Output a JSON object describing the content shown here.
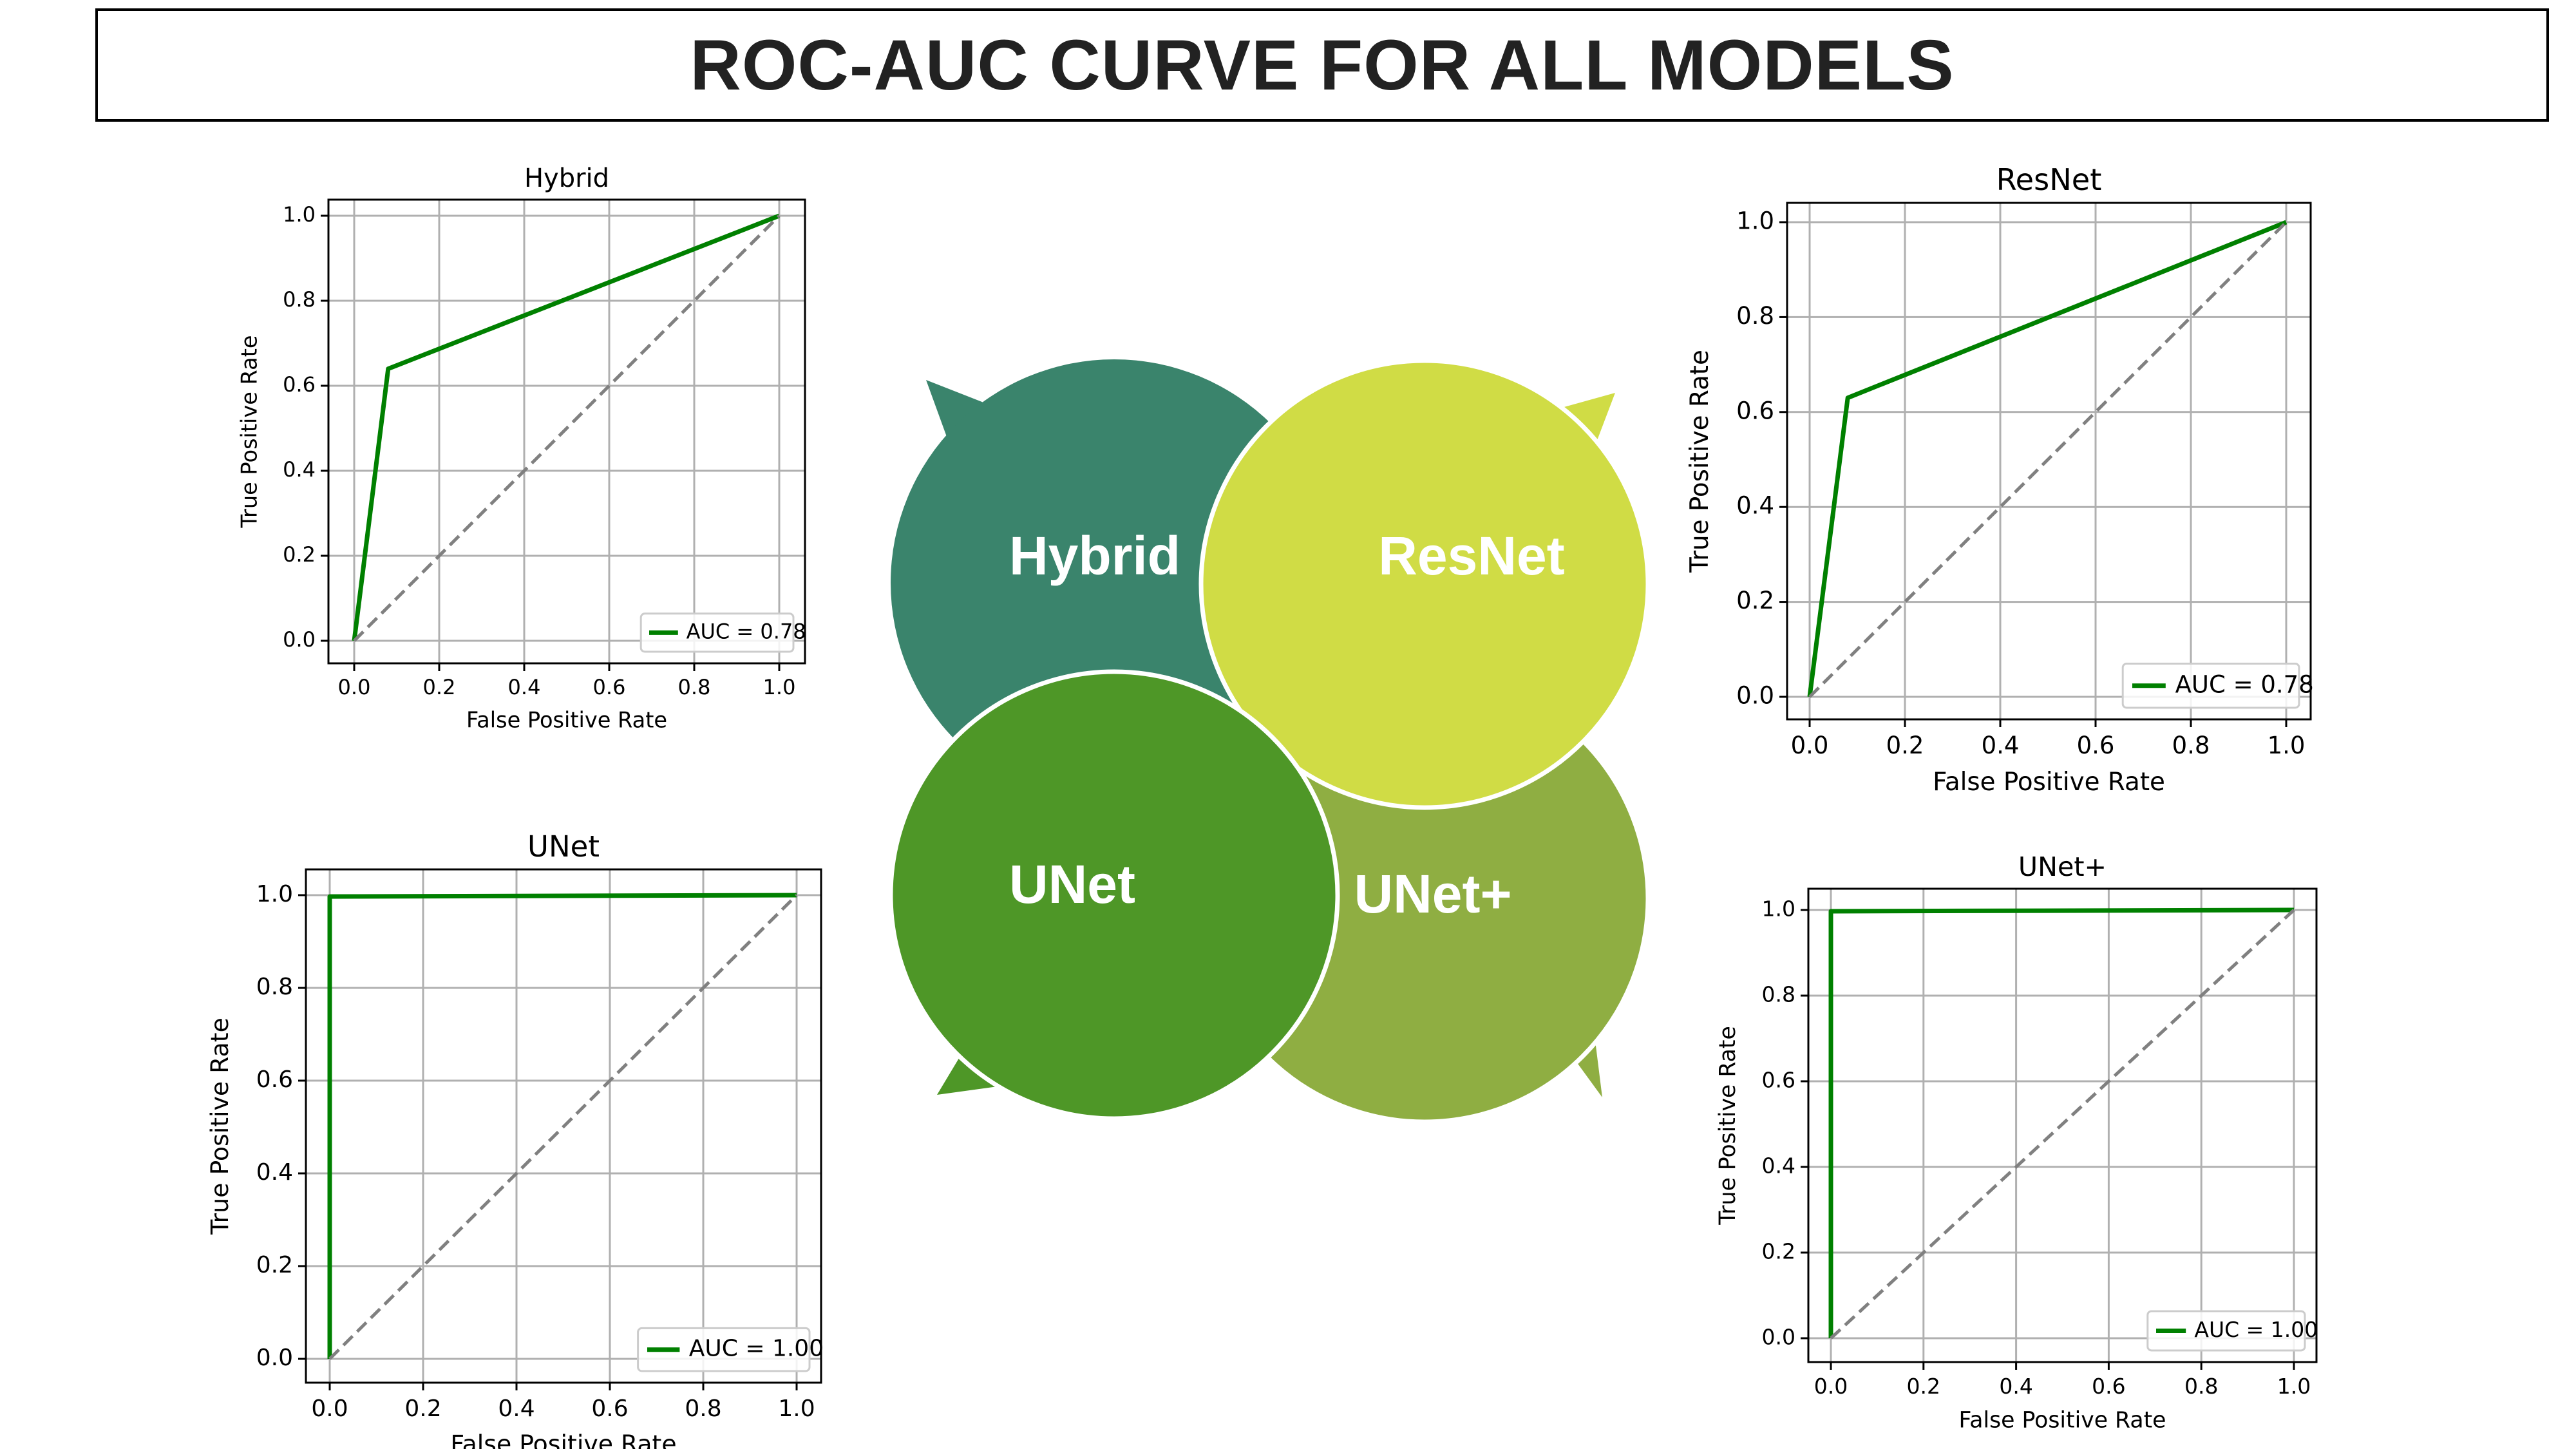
{
  "header": {
    "title": "ROC-AUC CURVE FOR ALL MODELS"
  },
  "center_graphic": {
    "labels": [
      "Hybrid",
      "ResNet",
      "UNet",
      "UNet+"
    ],
    "colors": [
      "#3a846c",
      "#d0dc45",
      "#4e9727",
      "#8fae42"
    ]
  },
  "chart_data": [
    {
      "type": "line",
      "title": "Hybrid",
      "xlabel": "False Positive Rate",
      "ylabel": "True Positive Rate",
      "xlim": [
        0,
        1
      ],
      "ylim": [
        0,
        1
      ],
      "grid": true,
      "legend_position": "lower right",
      "ticks": [
        "0.0",
        "0.2",
        "0.4",
        "0.6",
        "0.8",
        "1.0"
      ],
      "series": [
        {
          "name": "AUC = 0.78",
          "x": [
            0,
            0.08,
            1
          ],
          "y": [
            0,
            0.64,
            1
          ],
          "color": "#008000",
          "style": "solid"
        },
        {
          "x": [
            0,
            1
          ],
          "y": [
            0,
            1
          ],
          "color": "#808080",
          "style": "dashed"
        }
      ]
    },
    {
      "type": "line",
      "title": "ResNet",
      "xlabel": "False Positive Rate",
      "ylabel": "True Positive Rate",
      "xlim": [
        0,
        1
      ],
      "ylim": [
        0,
        1
      ],
      "grid": true,
      "legend_position": "lower right",
      "ticks": [
        "0.0",
        "0.2",
        "0.4",
        "0.6",
        "0.8",
        "1.0"
      ],
      "series": [
        {
          "name": "AUC = 0.78",
          "x": [
            0,
            0.08,
            1
          ],
          "y": [
            0,
            0.63,
            1
          ],
          "color": "#008000",
          "style": "solid"
        },
        {
          "x": [
            0,
            1
          ],
          "y": [
            0,
            1
          ],
          "color": "#808080",
          "style": "dashed"
        }
      ]
    },
    {
      "type": "line",
      "title": "UNet",
      "xlabel": "False Positive Rate",
      "ylabel": "True Positive Rate",
      "xlim": [
        0,
        1
      ],
      "ylim": [
        0,
        1
      ],
      "grid": true,
      "legend_position": "lower right",
      "ticks": [
        "0.0",
        "0.2",
        "0.4",
        "0.6",
        "0.8",
        "1.0"
      ],
      "series": [
        {
          "name": "AUC = 1.00",
          "x": [
            0,
            0,
            1
          ],
          "y": [
            0,
            0.997,
            1
          ],
          "color": "#008000",
          "style": "solid"
        },
        {
          "x": [
            0,
            1
          ],
          "y": [
            0,
            1
          ],
          "color": "#808080",
          "style": "dashed"
        }
      ]
    },
    {
      "type": "line",
      "title": "UNet+",
      "xlabel": "False Positive Rate",
      "ylabel": "True Positive Rate",
      "xlim": [
        0,
        1
      ],
      "ylim": [
        0,
        1
      ],
      "grid": true,
      "legend_position": "lower right",
      "ticks": [
        "0.0",
        "0.2",
        "0.4",
        "0.6",
        "0.8",
        "1.0"
      ],
      "series": [
        {
          "name": "AUC = 1.00",
          "x": [
            0,
            0,
            1
          ],
          "y": [
            0,
            0.997,
            1
          ],
          "color": "#008000",
          "style": "solid"
        },
        {
          "x": [
            0,
            1
          ],
          "y": [
            0,
            1
          ],
          "color": "#808080",
          "style": "dashed"
        }
      ]
    }
  ]
}
